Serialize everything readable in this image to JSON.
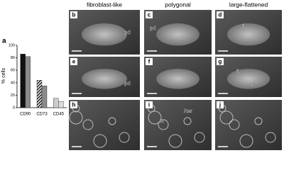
{
  "chart_data": {
    "type": "bar",
    "panel_label": "a",
    "y_label": "% cells",
    "categories": [
      "CD90",
      "CD73",
      "CD45"
    ],
    "series": [
      {
        "colors": [
          "#111111",
          "#444444",
          "#cccccc"
        ],
        "hatched": [
          false,
          true,
          false
        ],
        "values": [
          86,
          44,
          15
        ]
      },
      {
        "colors": [
          "#8a8a8a",
          "#8a8a8a",
          "#dddddd"
        ],
        "hatched": [
          false,
          false,
          false
        ],
        "values": [
          82,
          35,
          10
        ]
      }
    ],
    "ylim": [
      0,
      100
    ],
    "yticks": [
      0,
      20,
      40,
      60,
      80,
      100
    ]
  },
  "column_headers": [
    "fibroblast-like",
    "polygonal",
    "large-flattened"
  ],
  "panels": [
    {
      "label": "b",
      "annotations": [
        "pd"
      ]
    },
    {
      "label": "c",
      "annotations": [
        "pd"
      ]
    },
    {
      "label": "d",
      "annotations": [
        "n"
      ]
    },
    {
      "label": "e",
      "annotations": [
        "pd"
      ]
    },
    {
      "label": "f",
      "annotations": []
    },
    {
      "label": "g",
      "annotations": [
        "n",
        "n"
      ]
    },
    {
      "label": "h",
      "annotations": []
    },
    {
      "label": "i",
      "annotations": [
        "Rer",
        "m"
      ]
    },
    {
      "label": "j",
      "annotations": []
    }
  ]
}
